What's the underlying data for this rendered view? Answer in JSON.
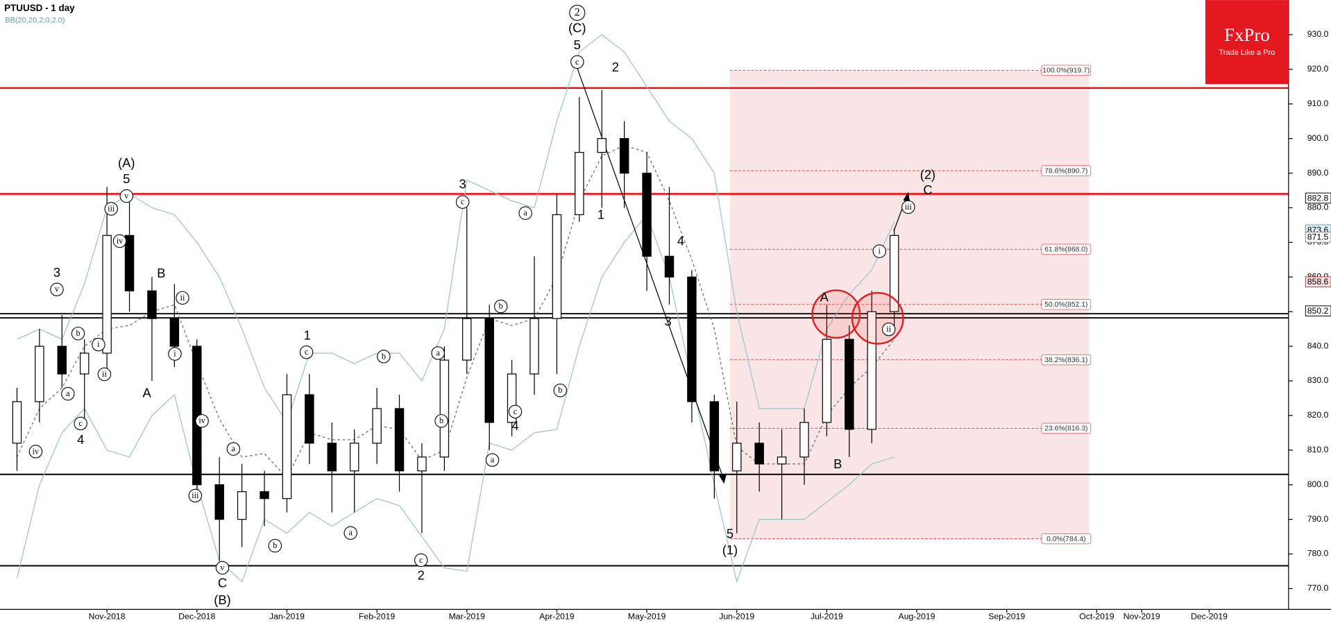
{
  "chart_data": {
    "type": "candlestick",
    "title": "PTUUSD - 1 day",
    "subtitle": "BB(20,20,2,0,2.0)",
    "categories": [
      null,
      null,
      null,
      null,
      "Nov-2018",
      null,
      null,
      null,
      "Dec-2018",
      null,
      null,
      null,
      "Jan-2019",
      null,
      null,
      null,
      "Feb-2019",
      null,
      null,
      null,
      "Mar-2019",
      null,
      null,
      null,
      "Apr-2019",
      null,
      null,
      null,
      "May-2019",
      null,
      null,
      null,
      "Jun-2019",
      null,
      null,
      null,
      "Jul-2019",
      null,
      null,
      null,
      "Aug-2019",
      null,
      null,
      null,
      "Sep-2019",
      null,
      null,
      null,
      "Oct-2019",
      null,
      "Nov-2019",
      null,
      null,
      "Dec-2019",
      null,
      null,
      null
    ],
    "open": [
      812,
      824,
      840,
      832,
      838,
      872,
      856,
      848,
      840,
      800,
      790,
      798,
      796,
      826,
      812,
      804,
      812,
      822,
      804,
      808,
      836,
      848,
      818,
      832,
      848,
      878,
      896,
      900,
      890,
      866,
      860,
      824,
      804,
      812,
      806,
      808,
      818,
      842,
      816,
      850,
      null,
      null,
      null,
      null,
      null,
      null,
      null,
      null,
      null,
      null,
      null,
      null,
      null,
      null,
      null,
      null,
      null
    ],
    "high": [
      828,
      845,
      849,
      842,
      886,
      884,
      860,
      858,
      842,
      808,
      806,
      804,
      832,
      832,
      818,
      816,
      828,
      826,
      812,
      840,
      880,
      852,
      836,
      866,
      884,
      912,
      914,
      905,
      896,
      886,
      862,
      826,
      824,
      818,
      816,
      822,
      852,
      846,
      856,
      874,
      null,
      null,
      null,
      null,
      null,
      null,
      null,
      null,
      null,
      null,
      null,
      null,
      null,
      null,
      null,
      null,
      null
    ],
    "low": [
      804,
      818,
      828,
      818,
      832,
      850,
      830,
      834,
      796,
      778,
      782,
      788,
      792,
      806,
      792,
      792,
      806,
      798,
      786,
      804,
      832,
      810,
      814,
      826,
      832,
      876,
      880,
      880,
      856,
      852,
      818,
      796,
      786,
      798,
      790,
      800,
      814,
      808,
      812,
      846,
      null,
      null,
      null,
      null,
      null,
      null,
      null,
      null,
      null,
      null,
      null,
      null,
      null,
      null,
      null,
      null,
      null
    ],
    "close": [
      824,
      840,
      832,
      838,
      872,
      856,
      848,
      840,
      800,
      790,
      798,
      796,
      826,
      812,
      804,
      812,
      822,
      804,
      808,
      836,
      848,
      818,
      832,
      848,
      878,
      896,
      900,
      890,
      866,
      860,
      824,
      804,
      812,
      806,
      808,
      818,
      842,
      816,
      850,
      872,
      null,
      null,
      null,
      null,
      null,
      null,
      null,
      null,
      null,
      null,
      null,
      null,
      null,
      null,
      null,
      null,
      null
    ],
    "up_color": "#ffffff",
    "down_color": "#000000",
    "bands": [
      {
        "color": "#96c3cc",
        "dashed": false,
        "values": [
          842,
          845,
          842,
          858,
          880,
          884,
          880,
          878,
          870,
          860,
          845,
          828,
          818,
          838,
          838,
          835,
          838,
          838,
          830,
          845,
          888,
          885,
          882,
          880,
          905,
          925,
          930,
          925,
          915,
          905,
          900,
          890,
          850,
          822,
          822,
          822,
          845,
          855,
          862,
          876,
          null,
          null,
          null,
          null,
          null,
          null,
          null,
          null,
          null,
          null,
          null,
          null,
          null,
          null,
          null,
          null,
          null
        ]
      },
      {
        "color": "#666666",
        "dashed": true,
        "values": [
          808,
          822,
          828,
          840,
          845,
          846,
          850,
          852,
          835,
          819,
          808,
          809,
          802,
          815,
          813,
          813,
          817,
          816,
          807,
          810,
          831,
          848,
          846,
          848,
          860,
          882,
          895,
          898,
          896,
          882,
          865,
          845,
          811,
          806,
          806,
          806,
          820,
          828,
          834,
          842,
          null,
          null,
          null,
          null,
          null,
          null,
          null,
          null,
          null,
          null,
          null,
          null,
          null,
          null,
          null,
          null,
          null
        ]
      },
      {
        "color": "#96c3cc",
        "dashed": false,
        "values": [
          773,
          800,
          815,
          822,
          810,
          808,
          820,
          826,
          800,
          778,
          772,
          790,
          786,
          792,
          788,
          792,
          796,
          794,
          785,
          776,
          775,
          812,
          810,
          815,
          816,
          840,
          860,
          870,
          878,
          860,
          830,
          800,
          772,
          790,
          790,
          790,
          795,
          800,
          806,
          808,
          null,
          null,
          null,
          null,
          null,
          null,
          null,
          null,
          null,
          null,
          null,
          null,
          null,
          null,
          null,
          null,
          null
        ]
      }
    ],
    "ylim": [
      764,
      940
    ],
    "yticks": [
      {
        "value": 930,
        "label": "930.0"
      },
      {
        "value": 920,
        "label": "920.0"
      },
      {
        "value": 910,
        "label": "910.0"
      },
      {
        "value": 900,
        "label": "900.0"
      },
      {
        "value": 890,
        "label": "890.0"
      },
      {
        "value": 880,
        "label": "880.0"
      },
      {
        "value": 870,
        "label": "870.0"
      },
      {
        "value": 860,
        "label": "860.0"
      },
      {
        "value": 850,
        "label": "850.0"
      },
      {
        "value": 840,
        "label": "840.0"
      },
      {
        "value": 830,
        "label": "830.0"
      },
      {
        "value": 820,
        "label": "820.0"
      },
      {
        "value": 810,
        "label": "810.0"
      },
      {
        "value": 800,
        "label": "800.0"
      },
      {
        "value": 790,
        "label": "790.0"
      },
      {
        "value": 780,
        "label": "780.0"
      },
      {
        "value": 770,
        "label": "770.0"
      }
    ],
    "hlines": [
      {
        "value": 914.6,
        "color": "#ff0000"
      },
      {
        "value": 884.0,
        "color": "#ff0000"
      },
      {
        "value": 849.4,
        "color": "#000000"
      },
      {
        "value": 848.2,
        "color": "#000000"
      },
      {
        "value": 803.0,
        "color": "#000000"
      },
      {
        "value": 776.6,
        "color": "#000000"
      }
    ],
    "price_markers": [
      {
        "value": 882.8,
        "color": "#000000",
        "fill": "#ffffff"
      },
      {
        "value": 873.6,
        "color": "#5aa0aa",
        "fill": "#e4f2f4"
      },
      {
        "value": 871.5,
        "color": "#888888",
        "fill": "#ffffff"
      },
      {
        "value": 858.6,
        "color": "#d03030",
        "fill": "#fbe0e0"
      },
      {
        "value": 850.2,
        "color": "#000000",
        "fill": "#ffffff"
      }
    ],
    "fib_levels": [
      {
        "value": 919.7,
        "label": "100.0%(919.7)"
      },
      {
        "value": 890.7,
        "label": "78.6%(890.7)"
      },
      {
        "value": 868.0,
        "label": "61.8%(868.0)"
      },
      {
        "value": 852.1,
        "label": "50.0%(852.1)"
      },
      {
        "value": 836.1,
        "label": "38.2%(836.1)"
      },
      {
        "value": 816.3,
        "label": "23.6%(816.3)"
      },
      {
        "value": 784.4,
        "label": "0.0%(784.4)"
      }
    ],
    "wave_labels": [
      {
        "text": "iv",
        "circled": true
      },
      {
        "text": "3",
        "circled": false
      },
      {
        "text": "v",
        "circled": true
      },
      {
        "text": "b",
        "circled": true
      },
      {
        "text": "a",
        "circled": true
      },
      {
        "text": "c",
        "circled": true
      },
      {
        "text": "4",
        "circled": false
      },
      {
        "text": "i",
        "circled": true
      },
      {
        "text": "ii",
        "circled": true
      },
      {
        "text": "iii",
        "circled": true
      },
      {
        "text": "iv",
        "circled": true
      },
      {
        "text": "(A)",
        "circled": false
      },
      {
        "text": "5",
        "circled": false
      },
      {
        "text": "v",
        "circled": true
      },
      {
        "text": "B",
        "circled": false
      },
      {
        "text": "ii",
        "circled": true
      },
      {
        "text": "i",
        "circled": true
      },
      {
        "text": "A",
        "circled": false
      },
      {
        "text": "iv",
        "circled": true
      },
      {
        "text": "iii",
        "circled": true
      },
      {
        "text": "a",
        "circled": true
      },
      {
        "text": "v",
        "circled": true
      },
      {
        "text": "C",
        "circled": false
      },
      {
        "text": "(B)",
        "circled": false
      },
      {
        "text": "1",
        "circled": false
      },
      {
        "text": "c",
        "circled": true
      },
      {
        "text": "b",
        "circled": true
      },
      {
        "text": "b",
        "circled": true
      },
      {
        "text": "a",
        "circled": true
      },
      {
        "text": "c",
        "circled": true
      },
      {
        "text": "2",
        "circled": false
      },
      {
        "text": "a",
        "circled": true
      },
      {
        "text": "b",
        "circled": true
      },
      {
        "text": "3",
        "circled": false
      },
      {
        "text": "c",
        "circled": true
      },
      {
        "text": "a",
        "circled": true
      },
      {
        "text": "b",
        "circled": true
      },
      {
        "text": "c",
        "circled": true
      },
      {
        "text": "4",
        "circled": false
      },
      {
        "text": "a",
        "circled": true
      },
      {
        "text": "b",
        "circled": true
      },
      {
        "text": "2",
        "circled": true
      },
      {
        "text": "(C)",
        "circled": false
      },
      {
        "text": "5",
        "circled": false
      },
      {
        "text": "c",
        "circled": true
      },
      {
        "text": "2",
        "circled": false
      },
      {
        "text": "1",
        "circled": false
      },
      {
        "text": "4",
        "circled": false
      },
      {
        "text": "3",
        "circled": false
      },
      {
        "text": "5",
        "circled": false
      },
      {
        "text": "(1)",
        "circled": false
      },
      {
        "text": "A",
        "circled": false
      },
      {
        "text": "B",
        "circled": false
      },
      {
        "text": "i",
        "circled": true
      },
      {
        "text": "ii",
        "circled": true
      },
      {
        "text": "iii",
        "circled": true
      },
      {
        "text": "(2)",
        "circled": false
      },
      {
        "text": "C",
        "circled": false
      }
    ]
  },
  "logo": {
    "name": "FxPro",
    "tagline": "Trade Like a Pro"
  }
}
